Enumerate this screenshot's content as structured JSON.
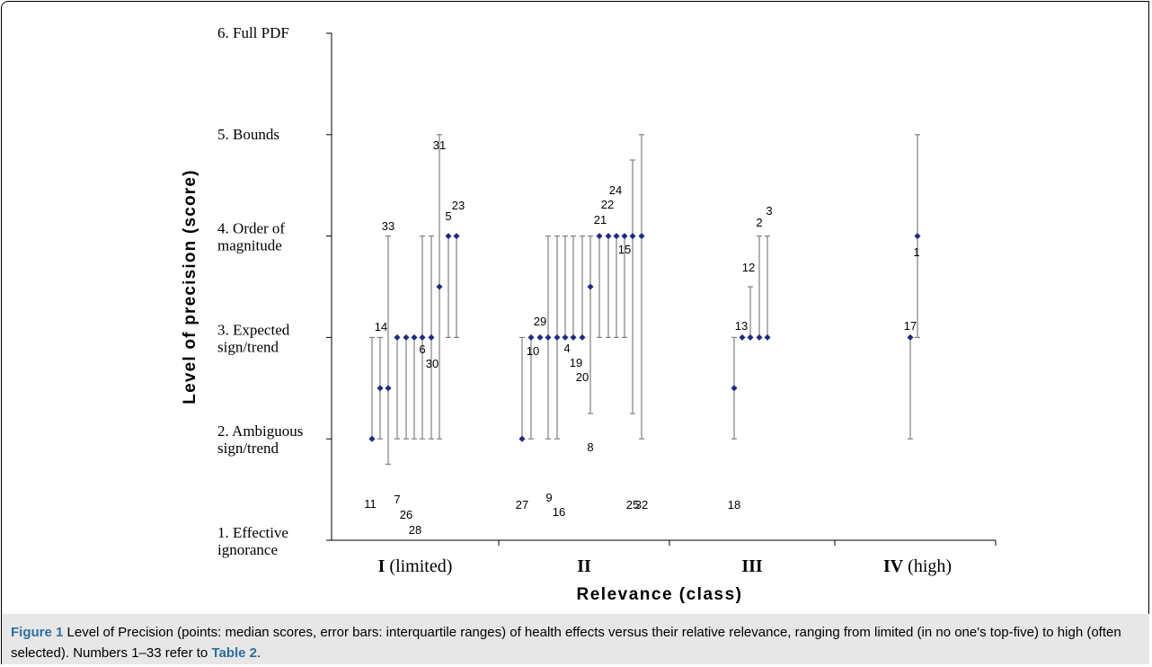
{
  "chart_data": {
    "type": "scatter",
    "xlabel": "Relevance (class)",
    "ylabel": "Level of precision (score)",
    "ylim": [
      1,
      6
    ],
    "y_ticks": [
      {
        "value": 6,
        "lines": [
          "6. Full PDF"
        ]
      },
      {
        "value": 5,
        "lines": [
          "5. Bounds"
        ]
      },
      {
        "value": 4,
        "lines": [
          "4. Order of",
          "magnitude"
        ]
      },
      {
        "value": 3,
        "lines": [
          "3. Expected",
          "sign/trend"
        ]
      },
      {
        "value": 2,
        "lines": [
          "2. Ambiguous",
          "sign/trend"
        ]
      },
      {
        "value": 1,
        "lines": [
          "1. Effective",
          "ignorance"
        ]
      }
    ],
    "categories": [
      {
        "bold": "I",
        "rest": " (limited)"
      },
      {
        "bold": "II",
        "rest": ""
      },
      {
        "bold": "III",
        "rest": ""
      },
      {
        "bold": "IV",
        "rest": " (high)"
      }
    ],
    "points": [
      {
        "id": "11",
        "class": "I",
        "median": 2.0,
        "q1": 2.0,
        "q3": 3.0
      },
      {
        "id": "14",
        "class": "I",
        "median": 2.5,
        "q1": 2.0,
        "q3": 3.0
      },
      {
        "id": "33",
        "class": "I",
        "median": 2.5,
        "q1": 1.75,
        "q3": 4.0
      },
      {
        "id": "7",
        "class": "I",
        "median": 3.0,
        "q1": 2.0,
        "q3": 3.0
      },
      {
        "id": "26",
        "class": "I",
        "median": 3.0,
        "q1": 2.0,
        "q3": 3.0
      },
      {
        "id": "28",
        "class": "I",
        "median": 3.0,
        "q1": 2.0,
        "q3": 3.0
      },
      {
        "id": "6",
        "class": "I",
        "median": 3.0,
        "q1": 2.0,
        "q3": 4.0
      },
      {
        "id": "30",
        "class": "I",
        "median": 3.0,
        "q1": 2.0,
        "q3": 4.0
      },
      {
        "id": "31",
        "class": "I",
        "median": 3.5,
        "q1": 2.0,
        "q3": 5.0
      },
      {
        "id": "5",
        "class": "I",
        "median": 4.0,
        "q1": 3.0,
        "q3": 4.0
      },
      {
        "id": "23",
        "class": "I",
        "median": 4.0,
        "q1": 3.0,
        "q3": 4.0
      },
      {
        "id": "27",
        "class": "II",
        "median": 2.0,
        "q1": 2.0,
        "q3": 3.0
      },
      {
        "id": "10",
        "class": "II",
        "median": 3.0,
        "q1": 2.0,
        "q3": 3.0
      },
      {
        "id": "29",
        "class": "II",
        "median": 3.0,
        "q1": 3.0,
        "q3": 3.0
      },
      {
        "id": "9",
        "class": "II",
        "median": 3.0,
        "q1": 2.0,
        "q3": 4.0
      },
      {
        "id": "16",
        "class": "II",
        "median": 3.0,
        "q1": 2.0,
        "q3": 4.0
      },
      {
        "id": "4",
        "class": "II",
        "median": 3.0,
        "q1": 3.0,
        "q3": 4.0
      },
      {
        "id": "19",
        "class": "II",
        "median": 3.0,
        "q1": 3.0,
        "q3": 4.0
      },
      {
        "id": "20",
        "class": "II",
        "median": 3.0,
        "q1": 3.0,
        "q3": 4.0
      },
      {
        "id": "8",
        "class": "II",
        "median": 3.5,
        "q1": 2.25,
        "q3": 4.0
      },
      {
        "id": "21",
        "class": "II",
        "median": 4.0,
        "q1": 3.0,
        "q3": 4.0
      },
      {
        "id": "22",
        "class": "II",
        "median": 4.0,
        "q1": 3.0,
        "q3": 4.0
      },
      {
        "id": "15",
        "class": "II",
        "median": 4.0,
        "q1": 3.0,
        "q3": 4.0
      },
      {
        "id": "24",
        "class": "II",
        "median": 4.0,
        "q1": 3.0,
        "q3": 4.0
      },
      {
        "id": "25",
        "class": "II",
        "median": 4.0,
        "q1": 2.25,
        "q3": 4.75
      },
      {
        "id": "32",
        "class": "II",
        "median": 4.0,
        "q1": 2.0,
        "q3": 5.0
      },
      {
        "id": "18",
        "class": "III",
        "median": 2.5,
        "q1": 2.0,
        "q3": 3.0
      },
      {
        "id": "13",
        "class": "III",
        "median": 3.0,
        "q1": 3.0,
        "q3": 3.0
      },
      {
        "id": "12",
        "class": "III",
        "median": 3.0,
        "q1": 3.0,
        "q3": 3.5
      },
      {
        "id": "2",
        "class": "III",
        "median": 3.0,
        "q1": 3.0,
        "q3": 4.0
      },
      {
        "id": "3",
        "class": "III",
        "median": 3.0,
        "q1": 3.0,
        "q3": 4.0
      },
      {
        "id": "17",
        "class": "IV",
        "median": 3.0,
        "q1": 2.0,
        "q3": 3.0
      },
      {
        "id": "1",
        "class": "IV",
        "median": 4.0,
        "q1": 3.0,
        "q3": 5.0
      }
    ],
    "colors": {
      "marker": "#1f2a80",
      "bar": "#808080",
      "axis": "#000000"
    }
  },
  "caption": {
    "label": "Figure 1",
    "text": " Level of Precision (points: median scores, error bars: interquartile ranges) of health effects versus their relative relevance, ranging from limited (in no one's top-five) to high (often selected). Numbers 1–33 refer to ",
    "ref": "Table 2",
    "end": "."
  }
}
